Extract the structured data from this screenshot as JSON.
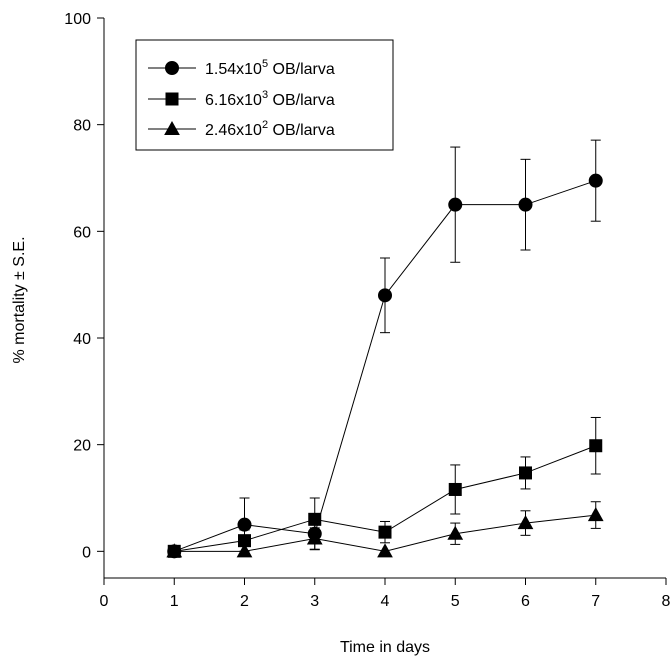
{
  "chart_data": {
    "type": "line",
    "xlabel": "Time in days",
    "ylabel": "% mortality ± S.E.",
    "xlim": [
      0,
      8
    ],
    "ylim": [
      -5,
      100
    ],
    "xticks": [
      0,
      1,
      2,
      3,
      4,
      5,
      6,
      7,
      8
    ],
    "yticks": [
      0,
      20,
      40,
      60,
      80,
      100
    ],
    "grid": false,
    "legend_position": "top-left",
    "x": [
      1,
      2,
      3,
      4,
      5,
      6,
      7
    ],
    "series": [
      {
        "name": "1.54x10^5 OB/larva",
        "label_base": "1.54x10",
        "label_exp": "5",
        "label_suffix": " OB/larva",
        "marker": "circle",
        "values": [
          0,
          5,
          3.3,
          48,
          65,
          65,
          69.5
        ],
        "errors": [
          0,
          5,
          3,
          7,
          10.8,
          8.5,
          7.6
        ]
      },
      {
        "name": "6.16x10^3 OB/larva",
        "label_base": "6.16x10",
        "label_exp": "3",
        "label_suffix": " OB/larva",
        "marker": "square",
        "values": [
          0,
          2,
          6,
          3.6,
          11.6,
          14.7,
          19.8
        ],
        "errors": [
          0,
          2,
          4,
          2,
          4.6,
          3,
          5.3
        ]
      },
      {
        "name": "2.46x10^2 OB/larva",
        "label_base": "2.46x10",
        "label_exp": "2",
        "label_suffix": " OB/larva",
        "marker": "triangle",
        "values": [
          0,
          0,
          2.4,
          0,
          3.3,
          5.3,
          6.8
        ],
        "errors": [
          0,
          0,
          2,
          0,
          2,
          2.3,
          2.5
        ]
      }
    ]
  }
}
